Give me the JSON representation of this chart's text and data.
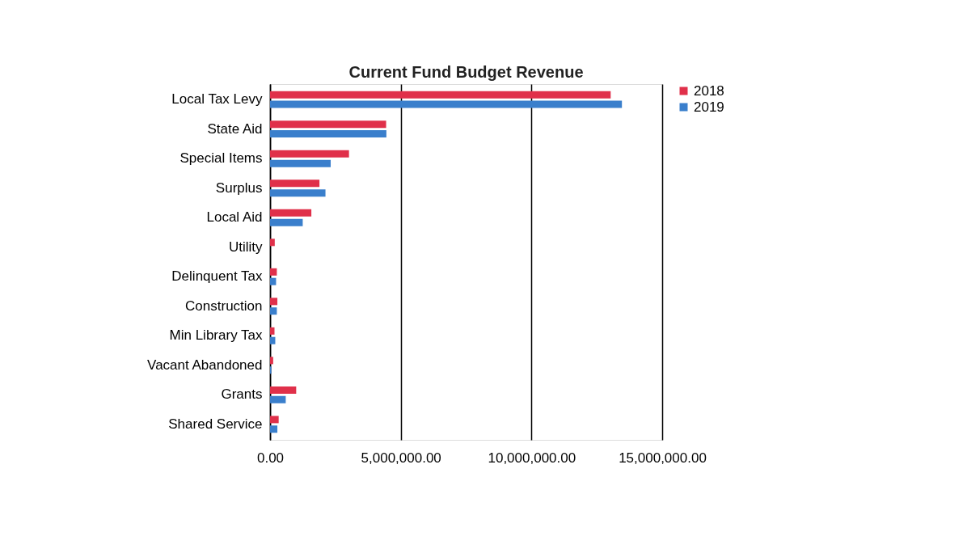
{
  "chart_data": {
    "type": "bar",
    "orientation": "horizontal",
    "title": "Current Fund Budget Revenue",
    "categories": [
      "Local Tax Levy",
      "State Aid",
      "Special Items",
      "Surplus",
      "Local Aid",
      "Utility",
      "Delinquent Tax",
      "Construction",
      "Min Library Tax",
      "Vacant Abandoned",
      "Grants",
      "Shared Service"
    ],
    "series": [
      {
        "name": "2018",
        "color": "#e0304a",
        "values": [
          13030000,
          4440000,
          3020000,
          1890000,
          1580000,
          180000,
          260000,
          280000,
          170000,
          120000,
          1000000,
          330000
        ]
      },
      {
        "name": "2019",
        "color": "#3a7fcc",
        "values": [
          13460000,
          4450000,
          2320000,
          2120000,
          1250000,
          null,
          230000,
          260000,
          200000,
          50000,
          600000,
          280000
        ]
      }
    ],
    "xlim": [
      0,
      15000000
    ],
    "xticks": [
      {
        "value": 0,
        "label": "0.00"
      },
      {
        "value": 5000000,
        "label": "5,000,000.00"
      },
      {
        "value": 10000000,
        "label": "10,000,000.00"
      },
      {
        "value": 15000000,
        "label": "15,000,000.00"
      }
    ],
    "grid": "x",
    "legend": "right"
  }
}
